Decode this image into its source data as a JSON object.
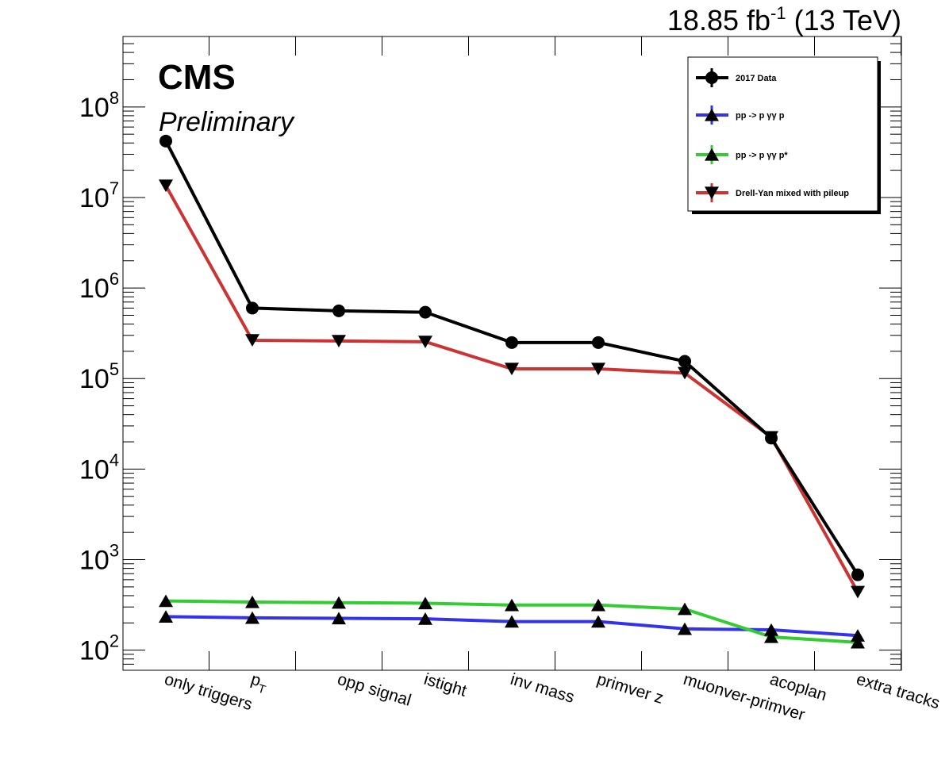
{
  "header": {
    "lumi_value": "18.85 fb",
    "lumi_sup": "-1",
    "energy": " (13 TeV)"
  },
  "cms_label": "CMS",
  "preliminary_label": "Preliminary",
  "chart_data": {
    "type": "line",
    "categories": [
      "only triggers",
      "p_T",
      "opp signal",
      "istight",
      "inv mass",
      "primver z",
      "muonver-primver",
      "acoplan",
      "extra tracks"
    ],
    "category_display": [
      {
        "main": "only triggers",
        "sub": ""
      },
      {
        "main": "p",
        "sub": "T"
      },
      {
        "main": "opp signal",
        "sub": ""
      },
      {
        "main": "istight",
        "sub": ""
      },
      {
        "main": "inv mass",
        "sub": ""
      },
      {
        "main": "primver z",
        "sub": ""
      },
      {
        "main": "muonver-primver",
        "sub": ""
      },
      {
        "main": "acoplan",
        "sub": ""
      },
      {
        "main": "extra tracks",
        "sub": ""
      }
    ],
    "y_scale": "log",
    "ylim": [
      60,
      600000000
    ],
    "y_ticks": [
      {
        "value": 100,
        "base": "10",
        "exp": "2"
      },
      {
        "value": 1000,
        "base": "10",
        "exp": "3"
      },
      {
        "value": 10000,
        "base": "10",
        "exp": "4"
      },
      {
        "value": 100000,
        "base": "10",
        "exp": "5"
      },
      {
        "value": 1000000,
        "base": "10",
        "exp": "6"
      },
      {
        "value": 10000000,
        "base": "10",
        "exp": "7"
      },
      {
        "value": 100000000,
        "base": "10",
        "exp": "8"
      }
    ],
    "xlabel": "",
    "ylabel": "",
    "legend_position": "top-right",
    "series": [
      {
        "name": "2017 Data",
        "color": "#000000",
        "marker": "circle",
        "values": [
          42000000,
          600000,
          560000,
          540000,
          250000,
          250000,
          155000,
          22000,
          680
        ]
      },
      {
        "name": "Drell-Yan mixed with pileup",
        "color": "#cc3333",
        "marker": "triangle-down",
        "values": [
          13500000,
          265000,
          260000,
          255000,
          128000,
          128000,
          115000,
          22500,
          440
        ]
      },
      {
        "name": "pp -> p  γγ p*",
        "color": "#33cc33",
        "marker": "triangle-up",
        "values": [
          350,
          340,
          335,
          330,
          315,
          315,
          285,
          140,
          122
        ]
      },
      {
        "name": "pp -> p  γγ p",
        "color": "#3333ee",
        "marker": "triangle-up",
        "values": [
          235,
          228,
          225,
          222,
          207,
          207,
          172,
          168,
          145
        ]
      }
    ],
    "legend_order": [
      0,
      3,
      2,
      1
    ]
  }
}
